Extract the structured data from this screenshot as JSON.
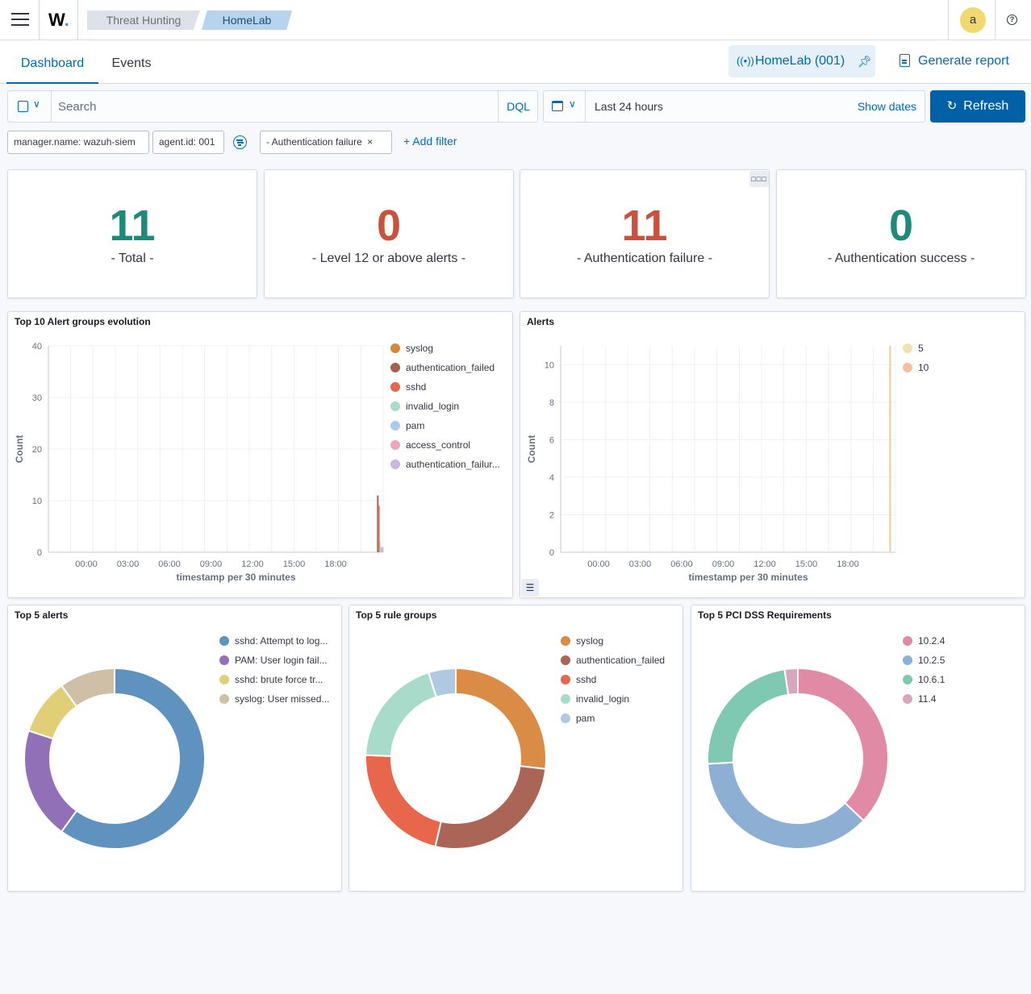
{
  "header": {
    "logo": "W",
    "breadcrumbs": [
      "Threat Hunting",
      "HomeLab"
    ],
    "avatar_initial": "a",
    "help_glyph": "?"
  },
  "tabs": [
    "Dashboard",
    "Events"
  ],
  "agent_button": {
    "label": "HomeLab (001)"
  },
  "generate_report": "Generate report",
  "query": {
    "placeholder": "Search",
    "language": "DQL"
  },
  "date": {
    "range": "Last 24 hours",
    "show_dates": "Show dates"
  },
  "refresh": "Refresh",
  "filters": [
    "manager.name: wazuh-siem",
    "agent.id: 001",
    "- Authentication failure"
  ],
  "add_filter": "+ Add filter",
  "metrics": [
    {
      "value": "11",
      "label": "- Total -",
      "color": "#1e8a7a"
    },
    {
      "value": "0",
      "label": "- Level 12 or above alerts -",
      "color": "#c9513d"
    },
    {
      "value": "11",
      "label": "- Authentication failure -",
      "color": "#c9513d"
    },
    {
      "value": "0",
      "label": "- Authentication success -",
      "color": "#1e8a7a"
    }
  ],
  "chart_data": [
    {
      "type": "bar",
      "title": "Top 10 Alert groups evolution",
      "xlabel": "timestamp per 30 minutes",
      "ylabel": "Count",
      "ylim": [
        0,
        40
      ],
      "yticks": [
        0,
        10,
        20,
        30,
        40
      ],
      "xticks": [
        "00:00",
        "03:00",
        "06:00",
        "09:00",
        "12:00",
        "15:00",
        "18:00"
      ],
      "legend_position": "right",
      "series": [
        {
          "name": "syslog",
          "color": "#d6873e",
          "values": [
            11
          ]
        },
        {
          "name": "authentication_failed",
          "color": "#a56152",
          "values": [
            11
          ]
        },
        {
          "name": "sshd",
          "color": "#e7664c",
          "values": [
            9
          ]
        },
        {
          "name": "invalid_login",
          "color": "#a8dbca",
          "values": [
            2
          ]
        },
        {
          "name": "pam",
          "color": "#aecbe6",
          "values": [
            1
          ]
        },
        {
          "name": "access_control",
          "color": "#e9a7be",
          "values": [
            1
          ]
        },
        {
          "name": "authentication_failur...",
          "color": "#c9b7e0",
          "values": [
            1
          ]
        }
      ]
    },
    {
      "type": "bar",
      "title": "Alerts",
      "xlabel": "timestamp per 30 minutes",
      "ylabel": "Count",
      "ylim": [
        0,
        11
      ],
      "yticks": [
        0,
        2,
        4,
        6,
        8,
        10
      ],
      "xticks": [
        "00:00",
        "03:00",
        "06:00",
        "09:00",
        "12:00",
        "15:00",
        "18:00"
      ],
      "legend_position": "right",
      "series": [
        {
          "name": "5",
          "color": "#efe1b0",
          "values": [
            11
          ]
        },
        {
          "name": "10",
          "color": "#f1c19e",
          "values": [
            11
          ]
        }
      ]
    },
    {
      "type": "pie",
      "title": "Top 5 alerts",
      "legend_position": "right",
      "slices": [
        {
          "name": "sshd: Attempt to log...",
          "value": 6,
          "color": "#6092c0"
        },
        {
          "name": "PAM: User login fail...",
          "value": 2,
          "color": "#9170b8"
        },
        {
          "name": "sshd: brute force tr...",
          "value": 1,
          "color": "#e0cf77"
        },
        {
          "name": "syslog: User missed...",
          "value": 1,
          "color": "#cfbfa6"
        }
      ]
    },
    {
      "type": "pie",
      "title": "Top 5 rule groups",
      "legend_position": "right",
      "slices": [
        {
          "name": "syslog",
          "value": 11,
          "color": "#da8b45"
        },
        {
          "name": "authentication_failed",
          "value": 11,
          "color": "#aa6556"
        },
        {
          "name": "sshd",
          "value": 9,
          "color": "#e7664c"
        },
        {
          "name": "invalid_login",
          "value": 8,
          "color": "#a8dbca"
        },
        {
          "name": "pam",
          "value": 2,
          "color": "#b0c9e0"
        }
      ]
    },
    {
      "type": "pie",
      "title": "Top 5 PCI DSS Requirements",
      "legend_position": "right",
      "slices": [
        {
          "name": "10.2.4",
          "value": 11,
          "color": "#e08aa6"
        },
        {
          "name": "10.2.5",
          "value": 11,
          "color": "#8dafd3"
        },
        {
          "name": "10.6.1",
          "value": 7,
          "color": "#7fc8b1"
        },
        {
          "name": "11.4",
          "value": 0.7,
          "color": "#d8a7bd"
        }
      ]
    }
  ]
}
